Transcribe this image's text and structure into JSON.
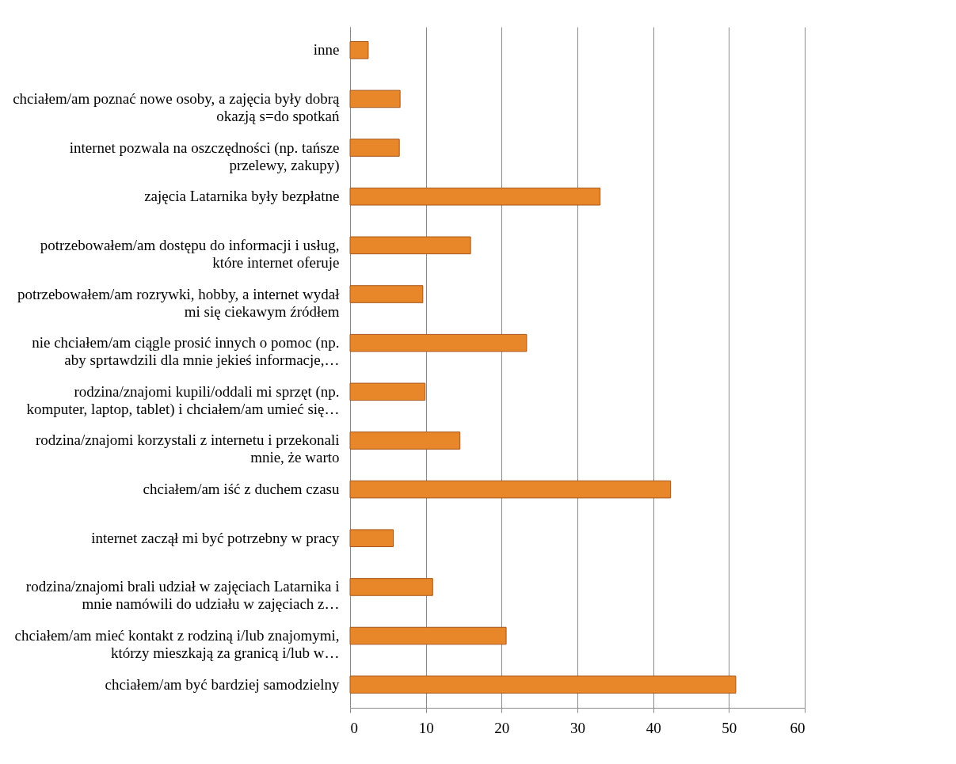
{
  "chart_data": {
    "type": "bar",
    "orientation": "horizontal",
    "categories": [
      "inne",
      "chciałem/am poznać  nowe osoby, a zajęcia były dobrą okazją s=do spotkań",
      "internet pozwala na oszczędności (np. tańsze przelewy, zakupy)",
      "zajęcia Latarnika były bezpłatne",
      "potrzebowałem/am dostępu do informacji i usług, które internet oferuje",
      "potrzebowałem/am rozrywki, hobby, a internet wydał mi się ciekawym źródłem",
      "nie chciałem/am ciągle prosić innych o pomoc (np. aby sprtawdzili dla mnie jekieś informacje,…",
      "rodzina/znajomi kupili/oddali mi sprzęt (np. komputer, laptop, tablet) i chciałem/am umieć się…",
      "rodzina/znajomi korzystali z internetu i przekonali mnie, że warto",
      "chciałem/am iść z duchem czasu",
      "internet zaczął mi być potrzebny w pracy",
      "rodzina/znajomi brali udział w zajęciach Latarnika i mnie namówili do udziału w zajęciach z…",
      "chciałem/am mieć kontakt z rodziną i/lub znajomymi, którzy mieszkają za granicą i/lub w…",
      "chciałem/am być bardziej samodzielny"
    ],
    "values": [
      2.4,
      6.6,
      6.5,
      33.0,
      15.9,
      9.6,
      23.3,
      9.9,
      14.5,
      42.3,
      5.7,
      10.9,
      20.6,
      50.9
    ],
    "color": "#e8862a",
    "xlim": [
      0,
      60
    ],
    "xticks": [
      0,
      10,
      20,
      30,
      40,
      50,
      60
    ],
    "grid": "x"
  }
}
